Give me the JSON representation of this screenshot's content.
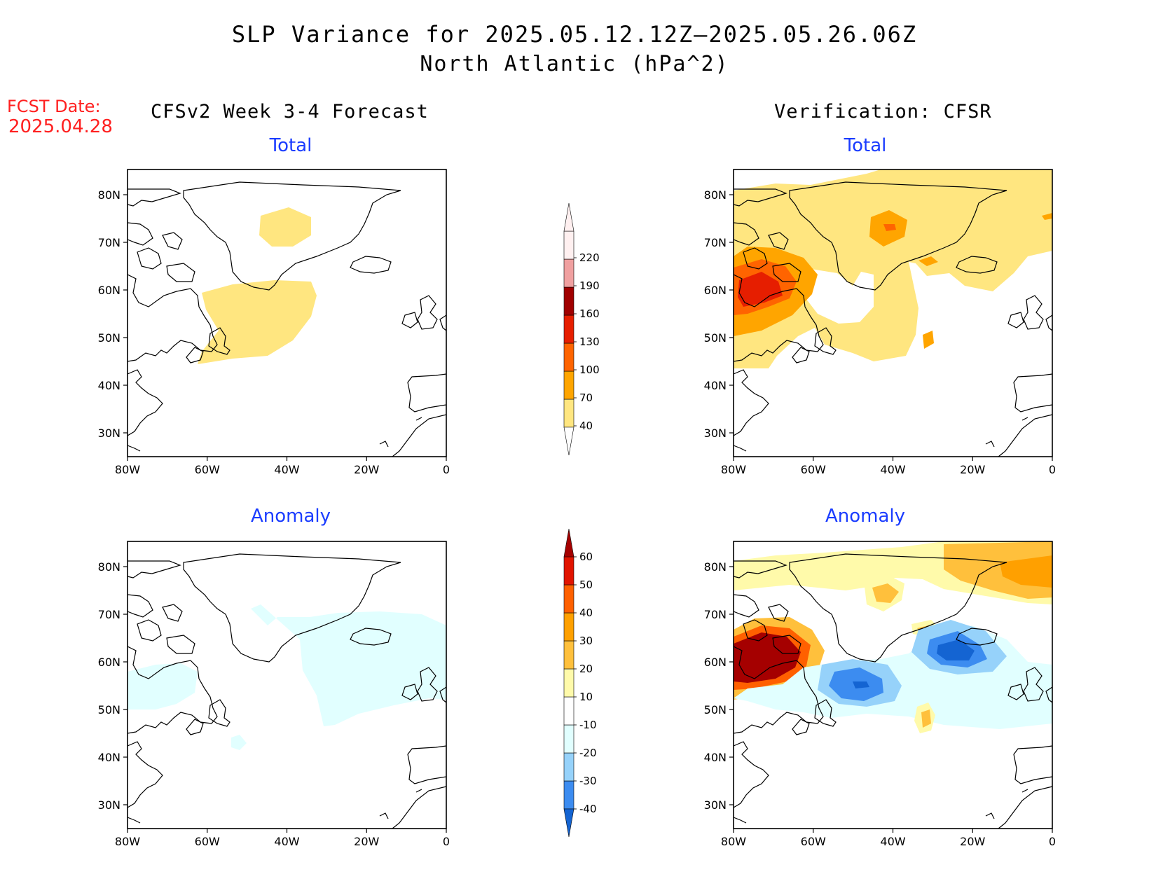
{
  "title": {
    "line1": "SLP Variance for 2025.05.12.12Z—2025.05.26.06Z",
    "line2": "North Atlantic (hPa^2)"
  },
  "fcst": {
    "label": "FCST Date:",
    "date": "2025.04.28"
  },
  "headings": {
    "left": "CFSv2 Week 3-4 Forecast",
    "right": "Verification: CFSR"
  },
  "panels": {
    "left_total": "Total",
    "right_total": "Total",
    "left_anomaly": "Anomaly",
    "right_anomaly": "Anomaly"
  },
  "axes": {
    "lat_labels": [
      "80N",
      "70N",
      "60N",
      "50N",
      "40N",
      "30N"
    ],
    "lon_labels": [
      "80W",
      "60W",
      "40W",
      "20W",
      "0"
    ]
  },
  "colorbars": {
    "total": {
      "labels": [
        "40",
        "70",
        "100",
        "130",
        "160",
        "190",
        "220"
      ],
      "colors": [
        "#ffe680",
        "#ffa500",
        "#ff6400",
        "#e61e00",
        "#a00000",
        "#f0a0a0",
        "#fff0f0"
      ]
    },
    "anomaly": {
      "labels": [
        "-40",
        "-30",
        "-20",
        "-10",
        "10",
        "20",
        "30",
        "40",
        "50",
        "60"
      ],
      "colors": [
        "#1464d2",
        "#3c8cf0",
        "#96d2fa",
        "#e1ffff",
        "#ffffff",
        "#fffaaa",
        "#ffc03c",
        "#ffa000",
        "#ff6000",
        "#e11400",
        "#a50000"
      ]
    }
  }
}
